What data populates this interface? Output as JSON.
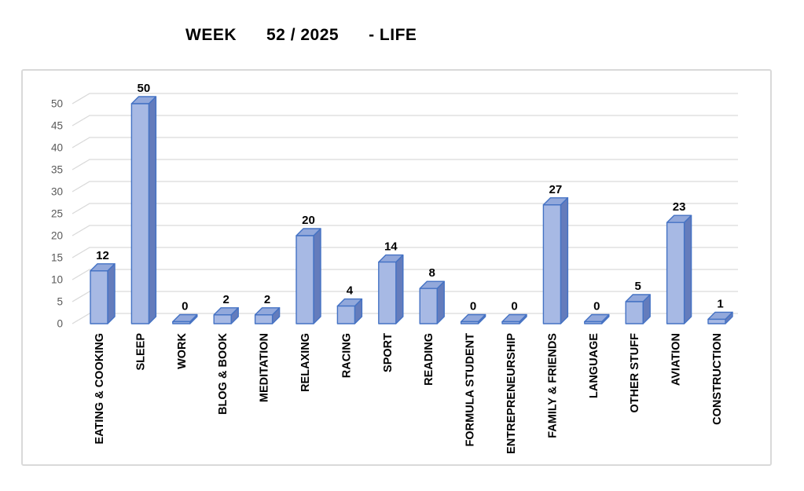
{
  "title": "WEEK      52 / 2025      - LIFE",
  "chart_data": {
    "type": "bar",
    "style": "3d-column",
    "title": "WEEK 52 / 2025 - LIFE",
    "categories": [
      "EATING & COOKING",
      "SLEEP",
      "WORK",
      "BLOG & BOOK",
      "MEDITATION",
      "RELAXING",
      "RACING",
      "SPORT",
      "READING",
      "FORMULA STUDENT",
      "ENTREPRENEURSHIP",
      "FAMILY & FRIENDS",
      "LANGUAGE",
      "OTHER STUFF",
      "AVIATION",
      "CONSTRUCTION"
    ],
    "values": [
      12,
      50,
      0,
      2,
      2,
      20,
      4,
      14,
      8,
      0,
      0,
      27,
      0,
      5,
      23,
      1
    ],
    "xlabel": "",
    "ylabel": "",
    "ylim": [
      0,
      50
    ],
    "yticks": [
      0,
      5,
      10,
      15,
      20,
      25,
      30,
      35,
      40,
      45,
      50
    ],
    "grid": true,
    "legend": false,
    "data_labels": true,
    "colors": {
      "bar_front": "#a7b9e4",
      "bar_top": "#92a8db",
      "bar_side": "#647cbc",
      "bar_border": "#4472c4",
      "gridline": "#d9d9d9",
      "axis_label": "#595959",
      "value_label": "#000000",
      "category_label": "#000000",
      "chart_border": "#d9d9d9",
      "background": "#ffffff"
    }
  }
}
